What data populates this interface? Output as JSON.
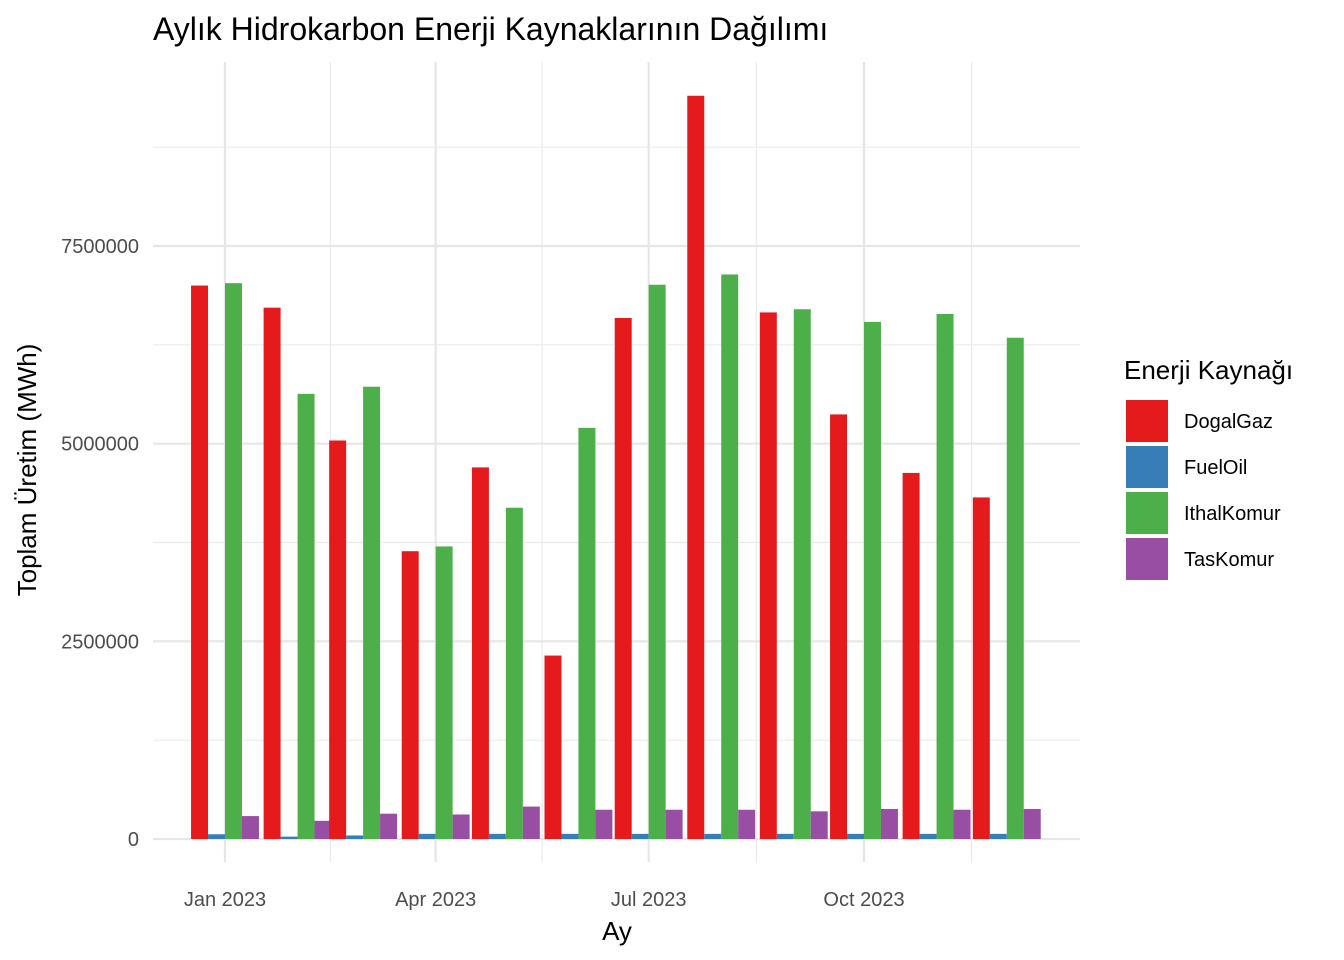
{
  "chart_data": {
    "type": "bar",
    "title": "Aylık Hidrokarbon Enerji Kaynaklarının Dağılımı",
    "xlabel": "Ay",
    "ylabel": "Toplam Üretim (MWh)",
    "x_dates": [
      "2023-01",
      "2023-02",
      "2023-03",
      "2023-04",
      "2023-05",
      "2023-06",
      "2023-07",
      "2023-08",
      "2023-09",
      "2023-10",
      "2023-11",
      "2023-12"
    ],
    "x_tick_labels": [
      {
        "label": "Jan 2023",
        "date": "2023-01-01"
      },
      {
        "label": "Apr 2023",
        "date": "2023-04-01"
      },
      {
        "label": "Jul 2023",
        "date": "2023-07-01"
      },
      {
        "label": "Oct 2023",
        "date": "2023-10-01"
      }
    ],
    "y_ticks": [
      0,
      2500000,
      5000000,
      7500000
    ],
    "y_tick_labels": [
      "0",
      "2500000",
      "5000000",
      "7500000"
    ],
    "ylim": [
      0,
      9500000
    ],
    "grid": true,
    "legend_title": "Enerji Kaynağı",
    "legend_position": "right",
    "series": [
      {
        "name": "DogalGaz",
        "color": "#E41A1C",
        "values": [
          7000000,
          6720000,
          5040000,
          3640000,
          4700000,
          2320000,
          6590000,
          9400000,
          6660000,
          5370000,
          4630000,
          4320000
        ]
      },
      {
        "name": "FuelOil",
        "color": "#377EB8",
        "values": [
          60000,
          30000,
          45000,
          65000,
          65000,
          65000,
          65000,
          65000,
          65000,
          65000,
          65000,
          65000
        ]
      },
      {
        "name": "IthalKomur",
        "color": "#4DAF4A",
        "values": [
          7030000,
          5630000,
          5720000,
          3700000,
          4190000,
          5200000,
          7010000,
          7140000,
          6700000,
          6540000,
          6640000,
          6340000
        ]
      },
      {
        "name": "TasKomur",
        "color": "#984EA3",
        "values": [
          290000,
          230000,
          320000,
          310000,
          410000,
          370000,
          370000,
          370000,
          350000,
          380000,
          370000,
          380000
        ]
      }
    ]
  }
}
